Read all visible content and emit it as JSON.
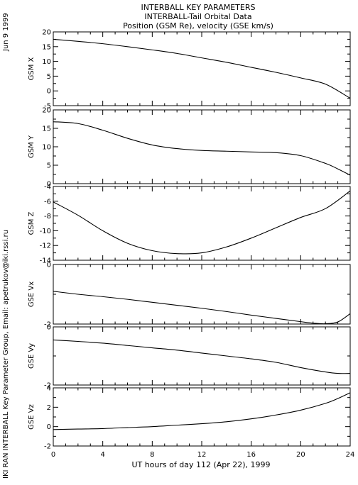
{
  "header": {
    "date": "Jun  9 1999",
    "lines": [
      "INTERBALL KEY PARAMETERS",
      "INTERBALL-Tail Orbital Data",
      "Position (GSM Re), velocity (GSE km/s)"
    ]
  },
  "side_credit": "IKI RAN INTERBALL Key Parameter Group, Email: apetrukov@iki.rssi.ru",
  "colors": {
    "line": "#000000",
    "background": "#ffffff"
  },
  "chart_data": {
    "type": "line",
    "title": "INTERBALL KEY PARAMETERS",
    "xlabel": "UT hours of day 112 (Apr 22), 1999",
    "xlim": [
      0,
      24
    ],
    "xticks": [
      0,
      4,
      8,
      12,
      16,
      20,
      24
    ],
    "xtick_labels": [
      "0",
      "4",
      "8",
      "12",
      "16",
      "20",
      "24"
    ],
    "grid": false,
    "panels": [
      {
        "ylabel": "GSM X",
        "ylim": [
          -5,
          20
        ],
        "yticks": [
          -5,
          0,
          5,
          10,
          15,
          20
        ],
        "ytick_labels": [
          "-5",
          "0",
          "5",
          "10",
          "15",
          "20"
        ],
        "x": [
          0,
          2,
          4,
          6,
          8,
          10,
          12,
          14,
          16,
          18,
          20,
          22,
          24
        ],
        "values": [
          17.5,
          16.8,
          16.0,
          15.0,
          13.9,
          12.7,
          11.2,
          9.7,
          8.0,
          6.3,
          4.4,
          2.3,
          -2.5
        ]
      },
      {
        "ylabel": "GSM Y",
        "ylim": [
          0,
          20
        ],
        "yticks": [
          0,
          5,
          10,
          15,
          20
        ],
        "ytick_labels": [
          "0",
          "5",
          "10",
          "15",
          "20"
        ],
        "x": [
          0,
          2,
          4,
          6,
          8,
          10,
          12,
          14,
          16,
          18,
          20,
          22,
          23,
          24
        ],
        "values": [
          16.8,
          16.3,
          14.5,
          12.3,
          10.5,
          9.5,
          9.0,
          8.8,
          8.6,
          8.4,
          7.6,
          5.5,
          4.0,
          2.3
        ]
      },
      {
        "ylabel": "GSM Z",
        "ylim": [
          -14,
          -4
        ],
        "yticks": [
          -14,
          -12,
          -10,
          -8,
          -6,
          -4
        ],
        "ytick_labels": [
          "-14",
          "-12",
          "-10",
          "-8",
          "-6",
          "-4"
        ],
        "x": [
          0,
          2,
          4,
          6,
          8,
          10,
          12,
          14,
          16,
          18,
          20,
          22,
          24
        ],
        "values": [
          -6.1,
          -7.9,
          -10.0,
          -11.7,
          -12.7,
          -13.1,
          -13.0,
          -12.2,
          -11.0,
          -9.6,
          -8.2,
          -7.0,
          -4.6
        ]
      },
      {
        "ylabel": "GSE Vx",
        "ylim": [
          -2,
          0
        ],
        "yticks": [
          -2,
          0
        ],
        "ytick_labels": [
          "-2",
          "0"
        ],
        "x": [
          0,
          2,
          4,
          6,
          8,
          10,
          12,
          14,
          16,
          18,
          20,
          21,
          22,
          23,
          24
        ],
        "values": [
          -0.9,
          -1.0,
          -1.08,
          -1.17,
          -1.27,
          -1.37,
          -1.47,
          -1.58,
          -1.7,
          -1.81,
          -1.92,
          -1.97,
          -1.99,
          -1.93,
          -1.65
        ]
      },
      {
        "ylabel": "GSE Vy",
        "ylim": [
          -2,
          0
        ],
        "yticks": [
          -2,
          0
        ],
        "ytick_labels": [
          "-2",
          "0"
        ],
        "x": [
          0,
          2,
          4,
          6,
          8,
          10,
          12,
          14,
          16,
          18,
          20,
          22,
          23,
          24
        ],
        "values": [
          -0.45,
          -0.5,
          -0.56,
          -0.64,
          -0.72,
          -0.8,
          -0.9,
          -1.0,
          -1.1,
          -1.22,
          -1.4,
          -1.55,
          -1.6,
          -1.6
        ]
      },
      {
        "ylabel": "GSE Vz",
        "ylim": [
          -2,
          4
        ],
        "yticks": [
          -2,
          0,
          2,
          4
        ],
        "ytick_labels": [
          "-2",
          "0",
          "2",
          "4"
        ],
        "x": [
          0,
          2,
          4,
          6,
          8,
          10,
          12,
          14,
          16,
          18,
          20,
          22,
          23,
          24
        ],
        "values": [
          -0.3,
          -0.25,
          -0.2,
          -0.1,
          0.0,
          0.15,
          0.3,
          0.5,
          0.8,
          1.2,
          1.7,
          2.4,
          2.9,
          3.5
        ]
      }
    ]
  }
}
